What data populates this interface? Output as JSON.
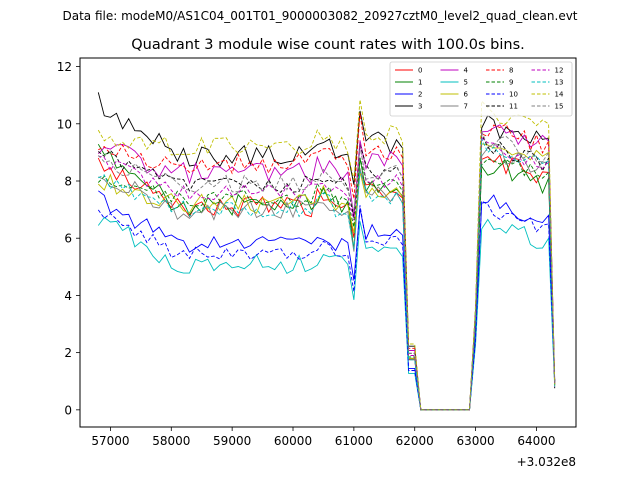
{
  "chart_data": {
    "type": "line",
    "suptitle": "Data file: modeM0/AS1C04_001T01_9000003082_20927cztM0_level2_quad_clean.evt",
    "title": "Quadrant 3 module wise count rates with 100.0s bins.",
    "xlabel": "",
    "ylabel": "",
    "x_offset_label": "+3.032e8",
    "xlim": [
      56500,
      64650
    ],
    "ylim": [
      -0.6,
      12.3
    ],
    "xticks": [
      57000,
      58000,
      59000,
      60000,
      61000,
      62000,
      63000,
      64000
    ],
    "xtick_labels": [
      "57000",
      "58000",
      "59000",
      "60000",
      "61000",
      "62000",
      "63000",
      "64000"
    ],
    "yticks": [
      0,
      2,
      4,
      6,
      8,
      10,
      12
    ],
    "ytick_labels": [
      "0",
      "2",
      "4",
      "6",
      "8",
      "10",
      "12"
    ],
    "x_start": 56800,
    "x_step": 100,
    "gap": {
      "drop_start": 61850,
      "zero_start": 62050,
      "zero_end": 62900,
      "rise_end": 63050,
      "end_x": 64300,
      "end_value": 0.9
    },
    "legend": {
      "location": "upper right",
      "columns": 4
    },
    "series": [
      {
        "name": "0",
        "color": "#ff0000",
        "dash": false,
        "level1": 7.1,
        "level2": 8.9,
        "spread": 0.35,
        "start": 8.6
      },
      {
        "name": "1",
        "color": "#008000",
        "dash": false,
        "level1": 7.2,
        "level2": 8.7,
        "spread": 0.4,
        "start": 9.0
      },
      {
        "name": "2",
        "color": "#0000ff",
        "dash": false,
        "level1": 5.8,
        "level2": 7.4,
        "spread": 0.3,
        "start": 7.4
      },
      {
        "name": "3",
        "color": "#000000",
        "dash": false,
        "level1": 8.9,
        "level2": 10.1,
        "spread": 0.4,
        "start": 10.7
      },
      {
        "name": "4",
        "color": "#bf00bf",
        "dash": false,
        "level1": 8.3,
        "level2": 10.0,
        "spread": 0.4,
        "start": 9.3
      },
      {
        "name": "5",
        "color": "#00bfbf",
        "dash": false,
        "level1": 5.1,
        "level2": 6.6,
        "spread": 0.35,
        "start": 6.7
      },
      {
        "name": "6",
        "color": "#bfbf00",
        "dash": false,
        "level1": 7.2,
        "level2": 9.6,
        "spread": 0.35,
        "start": 8.1
      },
      {
        "name": "7",
        "color": "#808080",
        "dash": false,
        "level1": 7.0,
        "level2": 9.2,
        "spread": 0.35,
        "start": 8.3
      },
      {
        "name": "8",
        "color": "#ff0000",
        "dash": true,
        "level1": 8.6,
        "level2": 10.0,
        "spread": 0.35,
        "start": 9.2
      },
      {
        "name": "9",
        "color": "#008000",
        "dash": true,
        "level1": 7.4,
        "level2": 8.9,
        "spread": 0.3,
        "start": 8.0
      },
      {
        "name": "10",
        "color": "#0000ff",
        "dash": true,
        "level1": 5.5,
        "level2": 7.1,
        "spread": 0.25,
        "start": 7.0
      },
      {
        "name": "11",
        "color": "#000000",
        "dash": true,
        "level1": 7.9,
        "level2": 9.4,
        "spread": 0.3,
        "start": 9.0
      },
      {
        "name": "12",
        "color": "#bf00bf",
        "dash": true,
        "level1": 7.6,
        "level2": 9.3,
        "spread": 0.3,
        "start": 8.8
      },
      {
        "name": "13",
        "color": "#00bfbf",
        "dash": true,
        "level1": 7.0,
        "level2": 9.3,
        "spread": 0.3,
        "start": 8.0
      },
      {
        "name": "14",
        "color": "#bfbf00",
        "dash": true,
        "level1": 9.2,
        "level2": 10.6,
        "spread": 0.35,
        "start": 9.6
      },
      {
        "name": "15",
        "color": "#808080",
        "dash": true,
        "level1": 7.9,
        "level2": 9.6,
        "spread": 0.3,
        "start": 8.7
      }
    ]
  }
}
